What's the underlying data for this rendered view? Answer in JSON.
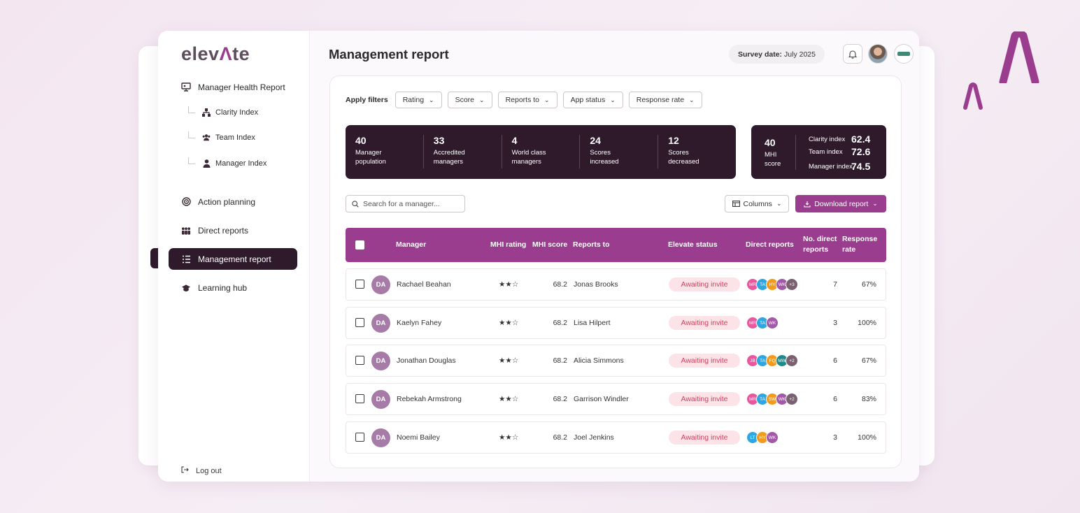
{
  "brand": {
    "pre": "elev",
    "mark": "Λ",
    "post": "te"
  },
  "sidebar": {
    "items": [
      {
        "label": "Manager Health Report"
      },
      {
        "label": "Action planning"
      },
      {
        "label": "Direct reports"
      },
      {
        "label": "Management report"
      },
      {
        "label": "Learning hub"
      }
    ],
    "subitems": [
      {
        "label": "Clarity Index"
      },
      {
        "label": "Team Index"
      },
      {
        "label": "Manager Index"
      }
    ],
    "logout": "Log out"
  },
  "header": {
    "title": "Management report",
    "survey_label": "Survey date:",
    "survey_value": "July 2025"
  },
  "filters": {
    "label": "Apply filters",
    "chips": [
      "Rating",
      "Score",
      "Reports to",
      "App status",
      "Response rate"
    ]
  },
  "stats": [
    {
      "value": "40",
      "label": "Manager population"
    },
    {
      "value": "33",
      "label": "Accredited managers"
    },
    {
      "value": "4",
      "label": "World class managers"
    },
    {
      "value": "24",
      "label": "Scores increased"
    },
    {
      "value": "12",
      "label": "Scores decreased"
    }
  ],
  "mhi": {
    "value": "40",
    "label": "MHI score",
    "indices": [
      {
        "label": "Clarity index",
        "value": "62.4"
      },
      {
        "label": "Team index",
        "value": "72.6"
      },
      {
        "label": "Manager index",
        "value": "74.5"
      }
    ]
  },
  "search": {
    "placeholder": "Search for a manager..."
  },
  "toolbar": {
    "columns": "Columns",
    "download": "Download report"
  },
  "table": {
    "headers": {
      "manager": "Manager",
      "rating": "MHI rating",
      "score": "MHI score",
      "reports_to": "Reports to",
      "status": "Elevate status",
      "direct": "Direct reports",
      "num_direct": "No. direct reports",
      "response": "Response rate"
    },
    "rows": [
      {
        "initials": "DA",
        "name": "Rachael Beahan",
        "rating": "★★☆",
        "score": "68.2",
        "reports_to": "Jonas Brooks",
        "status": "Awaiting invite",
        "avatars": [
          "MR",
          "TA",
          "HY",
          "WK",
          "+3"
        ],
        "num": "7",
        "rate": "67%"
      },
      {
        "initials": "DA",
        "name": "Kaelyn Fahey",
        "rating": "★★☆",
        "score": "68.2",
        "reports_to": "Lisa Hilpert",
        "status": "Awaiting invite",
        "avatars": [
          "MR",
          "TA",
          "WK"
        ],
        "num": "3",
        "rate": "100%"
      },
      {
        "initials": "DA",
        "name": "Jonathan Douglas",
        "rating": "★★☆",
        "score": "68.2",
        "reports_to": "Alicia Simmons",
        "status": "Awaiting invite",
        "avatars": [
          "JB",
          "TA",
          "FQ",
          "MW",
          "+2"
        ],
        "num": "6",
        "rate": "67%"
      },
      {
        "initials": "DA",
        "name": "Rebekah Armstrong",
        "rating": "★★☆",
        "score": "68.2",
        "reports_to": "Garrison Windler",
        "status": "Awaiting invite",
        "avatars": [
          "MR",
          "TA",
          "SW",
          "WK",
          "+2"
        ],
        "num": "6",
        "rate": "83%"
      },
      {
        "initials": "DA",
        "name": "Noemi Bailey",
        "rating": "★★☆",
        "score": "68.2",
        "reports_to": "Joel Jenkins",
        "status": "Awaiting invite",
        "avatars": [
          "LT",
          "HY",
          "WK"
        ],
        "num": "3",
        "rate": "100%"
      }
    ]
  },
  "colors": {
    "accent": "#9b3d8f",
    "dark": "#2e1a2b",
    "status_bg": "#fbe3e8",
    "status_text": "#d1415e",
    "avatar_palette": {
      "MR": "#e8589c",
      "TA": "#2fa6e0",
      "HY": "#f29a1b",
      "WK": "#a25aa6",
      "JB": "#e8589c",
      "FQ": "#f29a1b",
      "MW": "#1f8a8a",
      "SW": "#f29a1b",
      "LT": "#2fa6e0",
      "+3": "#7a6070",
      "+2": "#7a6070"
    }
  }
}
